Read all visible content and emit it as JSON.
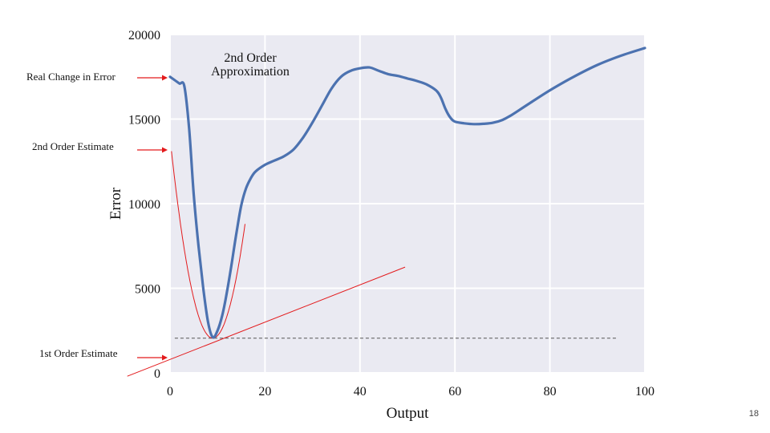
{
  "chart_data": {
    "type": "line",
    "xlabel": "Output",
    "ylabel": "Error",
    "xlim": [
      0,
      100
    ],
    "ylim": [
      0,
      20000
    ],
    "x_ticks": [
      "0",
      "20",
      "40",
      "60",
      "80",
      "100"
    ],
    "y_ticks": [
      "0",
      "5000",
      "10000",
      "15000",
      "20000"
    ],
    "grid": true,
    "background_color": "#eaeaf2",
    "series": [
      {
        "color": "#4c72b0",
        "points": [
          [
            0,
            17500
          ],
          [
            1,
            17300
          ],
          [
            2,
            17100
          ],
          [
            3,
            16950
          ],
          [
            4,
            14500
          ],
          [
            5,
            10500
          ],
          [
            6,
            7500
          ],
          [
            7,
            5000
          ],
          [
            8,
            3000
          ],
          [
            9,
            2100
          ],
          [
            10,
            2500
          ],
          [
            11,
            3400
          ],
          [
            12,
            4800
          ],
          [
            13,
            6500
          ],
          [
            14,
            8300
          ],
          [
            15,
            9900
          ],
          [
            16,
            10900
          ],
          [
            17,
            11500
          ],
          [
            18,
            11900
          ],
          [
            20,
            12300
          ],
          [
            22,
            12550
          ],
          [
            24,
            12800
          ],
          [
            26,
            13200
          ],
          [
            28,
            13900
          ],
          [
            30,
            14800
          ],
          [
            32,
            15800
          ],
          [
            34,
            16800
          ],
          [
            36,
            17500
          ],
          [
            38,
            17850
          ],
          [
            40,
            18000
          ],
          [
            42,
            18050
          ],
          [
            44,
            17850
          ],
          [
            46,
            17650
          ],
          [
            48,
            17550
          ],
          [
            50,
            17400
          ],
          [
            52,
            17250
          ],
          [
            54,
            17050
          ],
          [
            56,
            16700
          ],
          [
            57,
            16300
          ],
          [
            58,
            15600
          ],
          [
            59,
            15100
          ],
          [
            60,
            14850
          ],
          [
            62,
            14750
          ],
          [
            64,
            14700
          ],
          [
            66,
            14720
          ],
          [
            68,
            14780
          ],
          [
            70,
            14950
          ],
          [
            72,
            15250
          ],
          [
            75,
            15800
          ],
          [
            80,
            16700
          ],
          [
            85,
            17500
          ],
          [
            90,
            18200
          ],
          [
            95,
            18750
          ],
          [
            100,
            19200
          ]
        ]
      }
    ],
    "tangent_line": {
      "color": "#e31a1c",
      "from": [
        -9,
        -200
      ],
      "to": [
        49.5,
        6250
      ]
    },
    "parabola": {
      "color": "#e31a1c",
      "vertex": [
        9,
        2050
      ],
      "x_range": [
        0.3,
        15.8
      ]
    },
    "baseline": {
      "value": 2050,
      "x_range": [
        1,
        94
      ],
      "color": "#555555"
    },
    "annotations": {
      "real_change": "Real Change in Error",
      "second_estimate": "2nd Order Estimate",
      "first_estimate": "1st Order Estimate",
      "approx_line1": "2nd Order",
      "approx_line2": "Approximation"
    },
    "arrow_color": "#e31a1c"
  },
  "slide": {
    "number": "18"
  }
}
